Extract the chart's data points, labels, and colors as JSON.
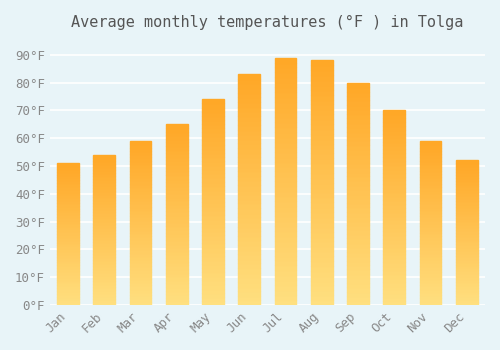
{
  "title": "Average monthly temperatures (°F ) in Tolga",
  "months": [
    "Jan",
    "Feb",
    "Mar",
    "Apr",
    "May",
    "Jun",
    "Jul",
    "Aug",
    "Sep",
    "Oct",
    "Nov",
    "Dec"
  ],
  "values": [
    51,
    54,
    59,
    65,
    74,
    83,
    89,
    88,
    80,
    70,
    59,
    52
  ],
  "bar_color_top": "#FFA500",
  "bar_color_bottom": "#FFD580",
  "background_color": "#e8f4f8",
  "plot_bg_color": "#e8f4f8",
  "yticks": [
    0,
    10,
    20,
    30,
    40,
    50,
    60,
    70,
    80,
    90
  ],
  "ylim": [
    0,
    95
  ],
  "title_fontsize": 11,
  "tick_fontsize": 9,
  "grid_color": "#ffffff"
}
